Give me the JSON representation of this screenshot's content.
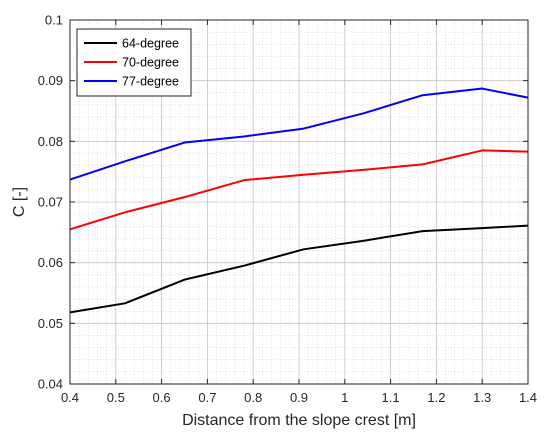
{
  "chart_data": {
    "type": "line",
    "title": "",
    "xlabel": "Distance from the slope crest [m]",
    "ylabel": "C [-]",
    "xlim": [
      0.4,
      1.4
    ],
    "ylim": [
      0.04,
      0.1
    ],
    "x_ticks": [
      0.4,
      0.5,
      0.6,
      0.7,
      0.8,
      0.9,
      1,
      1.1,
      1.2,
      1.3,
      1.4
    ],
    "x_tick_labels": [
      "0.4",
      "0.5",
      "0.6",
      "0.7",
      "0.8",
      "0.9",
      "1",
      "1.1",
      "1.2",
      "1.3",
      "1.4"
    ],
    "y_ticks": [
      0.04,
      0.05,
      0.06,
      0.07,
      0.08,
      0.09,
      0.1
    ],
    "y_tick_labels": [
      "0.04",
      "0.05",
      "0.06",
      "0.07",
      "0.08",
      "0.09",
      "0.1"
    ],
    "grid": true,
    "minor_grid": true,
    "legend_position": "top-left",
    "x": [
      0.4,
      0.52,
      0.65,
      0.78,
      0.91,
      1.04,
      1.17,
      1.3,
      1.4
    ],
    "series": [
      {
        "name": "64-degree",
        "color": "#000000",
        "values": [
          0.0518,
          0.0533,
          0.0572,
          0.0595,
          0.0622,
          0.0636,
          0.0652,
          0.0657,
          0.0661
        ]
      },
      {
        "name": "70-degree",
        "color": "#ff0000",
        "values": [
          0.0655,
          0.0683,
          0.0708,
          0.0736,
          0.0745,
          0.0753,
          0.0762,
          0.0785,
          0.0783
        ]
      },
      {
        "name": "77-degree",
        "color": "#0000ff",
        "values": [
          0.0737,
          0.0767,
          0.0798,
          0.0808,
          0.0821,
          0.0846,
          0.0876,
          0.0887,
          0.0872
        ]
      }
    ]
  }
}
